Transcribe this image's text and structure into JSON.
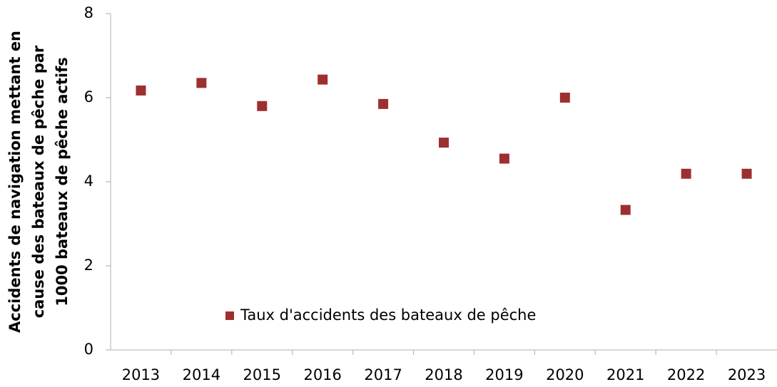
{
  "chart_data": {
    "type": "scatter",
    "ylabel": [
      "Accidents de navigation mettant en",
      "cause des bateaux de pêche par",
      "1000 bateaux de pêche actifs"
    ],
    "categories": [
      "2013",
      "2014",
      "2015",
      "2016",
      "2017",
      "2018",
      "2019",
      "2020",
      "2021",
      "2022",
      "2023"
    ],
    "series": [
      {
        "name": "Taux d'accidents des bateaux de pêche",
        "color": "#9e2f2f",
        "values": [
          6.17,
          6.35,
          5.8,
          6.43,
          5.85,
          4.93,
          4.55,
          6.0,
          3.33,
          4.19,
          4.19
        ]
      }
    ],
    "ylim": [
      0,
      8
    ],
    "yticks": [
      0,
      2,
      4,
      6,
      8
    ],
    "grid": false,
    "legend": "inside-bottom-left"
  }
}
